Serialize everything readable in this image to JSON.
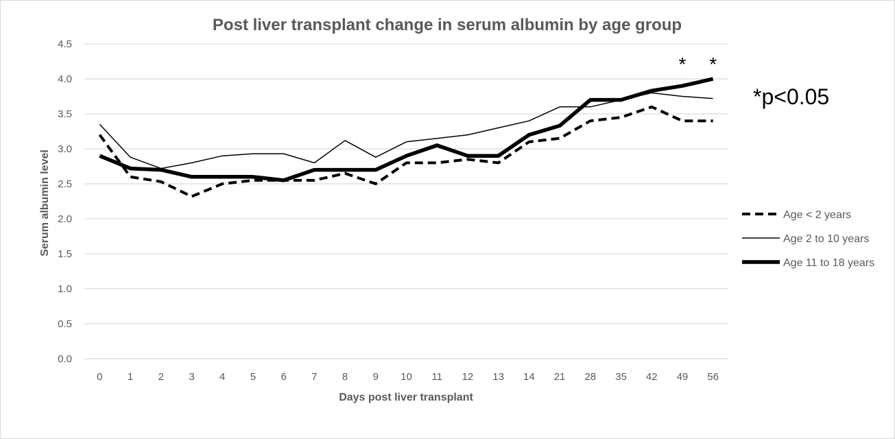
{
  "chart_data": {
    "type": "line",
    "title": "Post liver transplant change in serum albumin by age group",
    "xlabel": "Days post liver transplant",
    "ylabel": "Serum albumin level",
    "categories": [
      "0",
      "1",
      "2",
      "3",
      "4",
      "5",
      "6",
      "7",
      "8",
      "9",
      "10",
      "11",
      "12",
      "13",
      "14",
      "21",
      "28",
      "35",
      "42",
      "49",
      "56"
    ],
    "ylim": [
      0,
      4.5
    ],
    "yticks": [
      "0.0",
      "0.5",
      "1.0",
      "1.5",
      "2.0",
      "2.5",
      "3.0",
      "3.5",
      "4.0",
      "4.5"
    ],
    "grid": true,
    "legend_position": "right",
    "series": [
      {
        "name": "Age < 2 years",
        "style": "dashed",
        "color": "#000000",
        "values": [
          3.2,
          2.6,
          2.53,
          2.32,
          2.5,
          2.55,
          2.55,
          2.55,
          2.65,
          2.5,
          2.8,
          2.8,
          2.85,
          2.8,
          3.1,
          3.15,
          3.4,
          3.45,
          3.6,
          3.4,
          3.4
        ]
      },
      {
        "name": "Age 2 to 10 years",
        "style": "thin",
        "color": "#000000",
        "values": [
          3.35,
          2.88,
          2.72,
          2.8,
          2.9,
          2.93,
          2.93,
          2.8,
          3.12,
          2.88,
          3.1,
          3.15,
          3.2,
          3.3,
          3.4,
          3.6,
          3.6,
          3.7,
          3.8,
          3.75,
          3.72
        ]
      },
      {
        "name": "Age 11 to 18 years",
        "style": "thick",
        "color": "#000000",
        "values": [
          2.9,
          2.72,
          2.7,
          2.6,
          2.6,
          2.6,
          2.55,
          2.7,
          2.7,
          2.7,
          2.9,
          3.05,
          2.9,
          2.9,
          3.2,
          3.33,
          3.7,
          3.7,
          3.83,
          3.9,
          4.0
        ]
      }
    ],
    "significance_markers": {
      "categories": [
        "49",
        "56"
      ],
      "symbol": "*"
    },
    "annotation": "*p<0.05"
  },
  "colors": {
    "gridline": "#d9d9d9",
    "text": "#595959",
    "line": "#000000"
  }
}
